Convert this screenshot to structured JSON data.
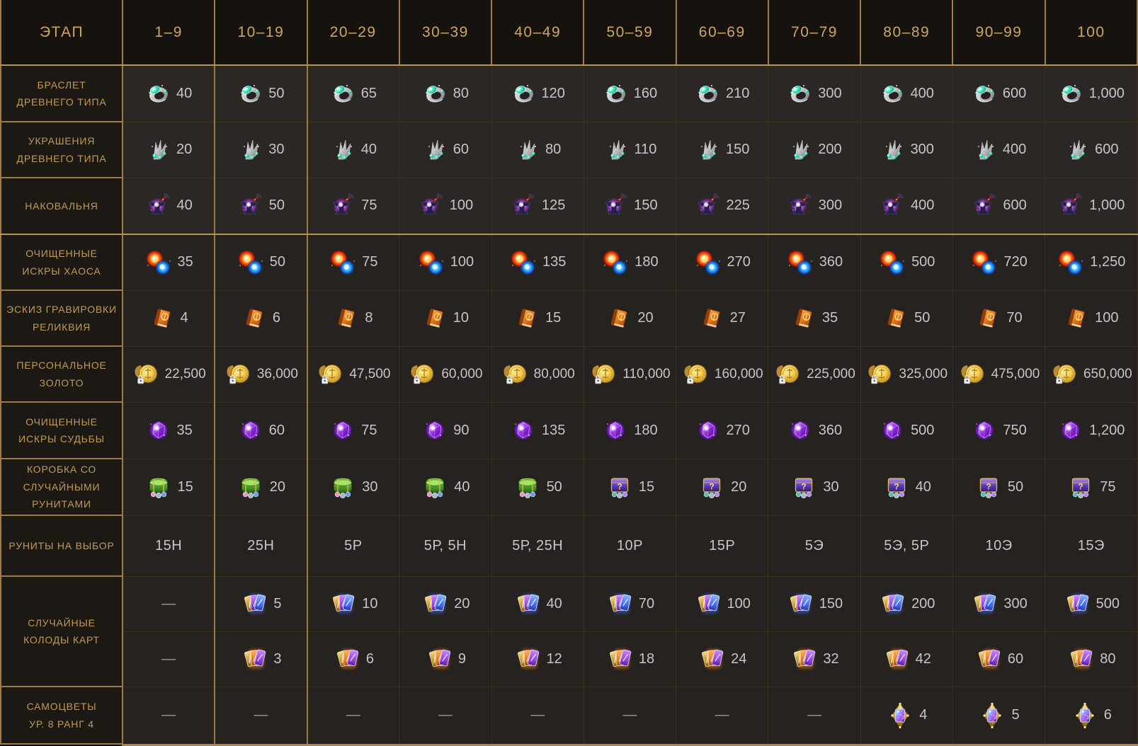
{
  "header": {
    "stage_label": "ЭТАП",
    "columns": [
      "1–9",
      "10–19",
      "20–29",
      "30–39",
      "40–49",
      "50–59",
      "60–69",
      "70–79",
      "80–89",
      "90–99",
      "100"
    ]
  },
  "colors": {
    "header_text_gold": "#cda760",
    "label_text_gold": "#c09c52",
    "value_text": "#c7c6c4",
    "bright_border_gold": "#a07c42",
    "dim_border": "#3b311f",
    "header_bg": "#16120e",
    "label_bg": "#1c1813",
    "cell_bg": "#262220",
    "cell_bg_highlight": "#2b2725",
    "accent_bar": "#a9854b"
  },
  "empty_cell": "—",
  "row_groups": [
    {
      "id": "bracelet",
      "label_lines": [
        "БРАСЛЕТ",
        "ДРЕВНЕГО ТИПА"
      ],
      "highlight": true,
      "rows": [
        {
          "icon": "bracelet-icon",
          "cells": [
            "40",
            "50",
            "65",
            "80",
            "120",
            "160",
            "210",
            "300",
            "400",
            "600",
            "1,000"
          ]
        }
      ]
    },
    {
      "id": "accessories",
      "label_lines": [
        "УКРАШЕНИЯ",
        "ДРЕВНЕГО ТИПА"
      ],
      "highlight": true,
      "rows": [
        {
          "icon": "accessory-icon",
          "cells": [
            "20",
            "30",
            "40",
            "60",
            "80",
            "110",
            "150",
            "200",
            "300",
            "400",
            "600"
          ]
        }
      ]
    },
    {
      "id": "anvil",
      "label_lines": [
        "НАКОВАЛЬНЯ"
      ],
      "highlight": true,
      "bright_bottom": true,
      "rows": [
        {
          "icon": "anvil-icon",
          "cells": [
            "40",
            "50",
            "75",
            "100",
            "125",
            "150",
            "225",
            "300",
            "400",
            "600",
            "1,000"
          ]
        }
      ]
    },
    {
      "id": "chaos-sparks",
      "label_lines": [
        "ОЧИЩЕННЫЕ",
        "ИСКРЫ ХАОСА"
      ],
      "rows": [
        {
          "icon": "chaos-sparks-icon",
          "cells": [
            "35",
            "50",
            "75",
            "100",
            "135",
            "180",
            "270",
            "360",
            "500",
            "720",
            "1,250"
          ]
        }
      ]
    },
    {
      "id": "engraving-sketch",
      "label_lines": [
        "ЭСКИЗ ГРАВИРОВКИ",
        "РЕЛИКВИЯ"
      ],
      "rows": [
        {
          "icon": "engraving-book-icon",
          "cells": [
            "4",
            "6",
            "8",
            "10",
            "15",
            "20",
            "27",
            "35",
            "50",
            "70",
            "100"
          ]
        }
      ]
    },
    {
      "id": "personal-gold",
      "label_lines": [
        "ПЕРСОНАЛЬНОЕ",
        "ЗОЛОТО"
      ],
      "small": true,
      "rows": [
        {
          "icon": "gold-coin-icon",
          "cells": [
            "22,500",
            "36,000",
            "47,500",
            "60,000",
            "80,000",
            "110,000",
            "160,000",
            "225,000",
            "325,000",
            "475,000",
            "650,000"
          ]
        }
      ]
    },
    {
      "id": "fate-sparks",
      "label_lines": [
        "ОЧИЩЕННЫЕ",
        "ИСКРЫ СУДЬБЫ"
      ],
      "rows": [
        {
          "icon": "fate-spark-icon",
          "cells": [
            "35",
            "60",
            "75",
            "90",
            "135",
            "180",
            "270",
            "360",
            "500",
            "750",
            "1,200"
          ]
        }
      ]
    },
    {
      "id": "rune-box",
      "label_lines": [
        "КОРОБКА СО",
        "СЛУЧАЙНЫМИ",
        "РУНИТАМИ"
      ],
      "rows": [
        {
          "icon": null,
          "cells": [
            {
              "icon": "rune-box-green-icon",
              "text": "15"
            },
            {
              "icon": "rune-box-green-icon",
              "text": "20"
            },
            {
              "icon": "rune-box-green-icon",
              "text": "30"
            },
            {
              "icon": "rune-box-green-icon",
              "text": "40"
            },
            {
              "icon": "rune-box-green-icon",
              "text": "50"
            },
            {
              "icon": "rune-box-purple-icon",
              "text": "15"
            },
            {
              "icon": "rune-box-purple-icon",
              "text": "20"
            },
            {
              "icon": "rune-box-purple-icon",
              "text": "30"
            },
            {
              "icon": "rune-box-purple-icon",
              "text": "40"
            },
            {
              "icon": "rune-box-purple-icon",
              "text": "50"
            },
            {
              "icon": "rune-box-purple-icon",
              "text": "75"
            }
          ]
        }
      ]
    },
    {
      "id": "runes-choice",
      "label_lines": [
        "РУНИТЫ НА ВЫБОР"
      ],
      "rows": [
        {
          "icon": null,
          "cells": [
            "15Н",
            "25Н",
            "5Р",
            "5Р, 5Н",
            "5Р, 25Н",
            "10Р",
            "15Р",
            "5Э",
            "5Э, 5Р",
            "10Э",
            "15Э"
          ]
        }
      ]
    },
    {
      "id": "card-decks",
      "label_lines": [
        "СЛУЧАЙНЫЕ",
        "КОЛОДЫ КАРТ"
      ],
      "rows": [
        {
          "icon": "card-deck-blue-icon",
          "cells": [
            "—",
            "5",
            "10",
            "20",
            "40",
            "70",
            "100",
            "150",
            "200",
            "300",
            "500"
          ]
        },
        {
          "icon": "card-deck-orange-icon",
          "cells": [
            "—",
            "3",
            "6",
            "9",
            "12",
            "18",
            "24",
            "32",
            "42",
            "60",
            "80"
          ]
        }
      ]
    },
    {
      "id": "gems",
      "label_lines": [
        "САМОЦВЕТЫ",
        "УР. 8 РАНГ 4"
      ],
      "rows": [
        {
          "icon": "gem-lvl8-icon",
          "cells": [
            "—",
            "—",
            "—",
            "—",
            "—",
            "—",
            "—",
            "—",
            "4",
            "5",
            "6"
          ]
        }
      ]
    }
  ]
}
